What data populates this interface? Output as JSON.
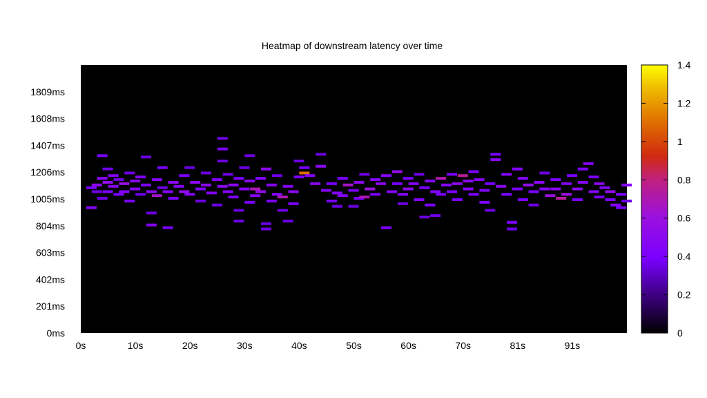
{
  "chart_data": {
    "type": "heatmap",
    "title": "Heatmap of downstream latency over time",
    "xlabel": "",
    "ylabel": "",
    "x_tick_labels": [
      "0s",
      "10s",
      "20s",
      "30s",
      "40s",
      "50s",
      "60s",
      "70s",
      "81s",
      "91s"
    ],
    "y_tick_labels": [
      "0ms",
      "201ms",
      "402ms",
      "603ms",
      "804ms",
      "1005ms",
      "1206ms",
      "1407ms",
      "1608ms",
      "1809ms"
    ],
    "colorbar_tick_labels": [
      "0",
      "0.2",
      "0.4",
      "0.6",
      "0.8",
      "1",
      "1.2",
      "1.4"
    ],
    "xlim": [
      0,
      100
    ],
    "ylim": [
      0,
      2010
    ],
    "zlim": [
      0,
      1.4
    ],
    "colormap": [
      "#000000",
      "#8000ff",
      "#c02090",
      "#e05010",
      "#ffe000",
      "#ffff00"
    ],
    "background_color": "#000000",
    "legend_position": "right",
    "cells": [
      [
        1,
        940,
        0.45
      ],
      [
        1,
        1090,
        0.4
      ],
      [
        2,
        1110,
        0.5
      ],
      [
        2,
        1060,
        0.35
      ],
      [
        3,
        1160,
        0.45
      ],
      [
        3,
        1010,
        0.35
      ],
      [
        3,
        1330,
        0.4
      ],
      [
        4,
        1130,
        0.55
      ],
      [
        4,
        1060,
        0.4
      ],
      [
        4,
        1230,
        0.35
      ],
      [
        5,
        1180,
        0.45
      ],
      [
        5,
        1100,
        0.5
      ],
      [
        6,
        1150,
        0.35
      ],
      [
        6,
        1040,
        0.4
      ],
      [
        7,
        1120,
        0.6
      ],
      [
        7,
        1060,
        0.45
      ],
      [
        8,
        1200,
        0.35
      ],
      [
        8,
        990,
        0.4
      ],
      [
        9,
        1140,
        0.5
      ],
      [
        9,
        1080,
        0.45
      ],
      [
        10,
        1040,
        0.35
      ],
      [
        10,
        1170,
        0.45
      ],
      [
        11,
        1110,
        0.4
      ],
      [
        11,
        1320,
        0.35
      ],
      [
        12,
        1060,
        0.5
      ],
      [
        12,
        900,
        0.35
      ],
      [
        12,
        810,
        0.45
      ],
      [
        13,
        1030,
        0.65
      ],
      [
        13,
        1150,
        0.45
      ],
      [
        14,
        1240,
        0.4
      ],
      [
        14,
        1090,
        0.35
      ],
      [
        15,
        1060,
        0.45
      ],
      [
        15,
        790,
        0.4
      ],
      [
        16,
        1130,
        0.5
      ],
      [
        16,
        1010,
        0.4
      ],
      [
        17,
        1100,
        0.45
      ],
      [
        18,
        1060,
        0.55
      ],
      [
        18,
        1180,
        0.4
      ],
      [
        19,
        1240,
        0.35
      ],
      [
        19,
        1040,
        0.45
      ],
      [
        20,
        1130,
        0.5
      ],
      [
        21,
        1080,
        0.4
      ],
      [
        21,
        990,
        0.35
      ],
      [
        22,
        1110,
        0.5
      ],
      [
        22,
        1200,
        0.35
      ],
      [
        23,
        1050,
        0.45
      ],
      [
        24,
        1150,
        0.4
      ],
      [
        24,
        960,
        0.35
      ],
      [
        25,
        1460,
        0.35
      ],
      [
        25,
        1380,
        0.4
      ],
      [
        25,
        1290,
        0.35
      ],
      [
        25,
        1100,
        0.5
      ],
      [
        26,
        1060,
        0.45
      ],
      [
        26,
        1190,
        0.35
      ],
      [
        27,
        1110,
        0.5
      ],
      [
        27,
        1020,
        0.4
      ],
      [
        28,
        1160,
        0.4
      ],
      [
        28,
        920,
        0.35
      ],
      [
        28,
        840,
        0.35
      ],
      [
        29,
        1080,
        0.45
      ],
      [
        29,
        1240,
        0.35
      ],
      [
        30,
        1140,
        0.5
      ],
      [
        30,
        1330,
        0.35
      ],
      [
        30,
        980,
        0.4
      ],
      [
        31,
        1080,
        0.7
      ],
      [
        31,
        1030,
        0.45
      ],
      [
        32,
        1160,
        0.45
      ],
      [
        32,
        1060,
        0.55
      ],
      [
        33,
        1230,
        0.5
      ],
      [
        33,
        820,
        0.35
      ],
      [
        33,
        780,
        0.35
      ],
      [
        34,
        1110,
        0.45
      ],
      [
        34,
        990,
        0.4
      ],
      [
        35,
        1040,
        0.45
      ],
      [
        35,
        1180,
        0.35
      ],
      [
        36,
        1020,
        0.7
      ],
      [
        36,
        920,
        0.35
      ],
      [
        37,
        1100,
        0.45
      ],
      [
        37,
        840,
        0.35
      ],
      [
        38,
        1060,
        0.5
      ],
      [
        38,
        970,
        0.4
      ],
      [
        39,
        1290,
        0.35
      ],
      [
        39,
        1170,
        0.4
      ],
      [
        40,
        1200,
        1.1
      ],
      [
        40,
        1240,
        0.4
      ],
      [
        41,
        1180,
        0.45
      ],
      [
        42,
        1120,
        0.5
      ],
      [
        43,
        1340,
        0.35
      ],
      [
        43,
        1250,
        0.5
      ],
      [
        44,
        1070,
        0.45
      ],
      [
        45,
        1120,
        0.4
      ],
      [
        45,
        990,
        0.4
      ],
      [
        46,
        1050,
        0.45
      ],
      [
        46,
        950,
        0.35
      ],
      [
        47,
        1160,
        0.4
      ],
      [
        47,
        1030,
        0.45
      ],
      [
        48,
        1110,
        0.65
      ],
      [
        49,
        1070,
        0.4
      ],
      [
        49,
        950,
        0.35
      ],
      [
        50,
        1130,
        0.5
      ],
      [
        50,
        1010,
        0.4
      ],
      [
        51,
        1020,
        0.7
      ],
      [
        51,
        1190,
        0.35
      ],
      [
        52,
        1080,
        0.6
      ],
      [
        53,
        1150,
        0.45
      ],
      [
        53,
        1040,
        0.4
      ],
      [
        54,
        1120,
        0.5
      ],
      [
        55,
        1180,
        0.45
      ],
      [
        55,
        790,
        0.4
      ],
      [
        56,
        1060,
        0.45
      ],
      [
        57,
        1210,
        0.55
      ],
      [
        57,
        1120,
        0.4
      ],
      [
        58,
        1040,
        0.45
      ],
      [
        58,
        970,
        0.35
      ],
      [
        59,
        1160,
        0.4
      ],
      [
        59,
        1080,
        0.5
      ],
      [
        60,
        1120,
        0.45
      ],
      [
        61,
        1000,
        0.45
      ],
      [
        61,
        1190,
        0.35
      ],
      [
        62,
        1090,
        0.4
      ],
      [
        62,
        870,
        0.35
      ],
      [
        63,
        1140,
        0.45
      ],
      [
        63,
        960,
        0.4
      ],
      [
        64,
        1060,
        0.45
      ],
      [
        64,
        880,
        0.35
      ],
      [
        65,
        1160,
        0.7
      ],
      [
        65,
        1040,
        0.4
      ],
      [
        66,
        1110,
        0.45
      ],
      [
        67,
        1190,
        0.4
      ],
      [
        67,
        1060,
        0.4
      ],
      [
        68,
        1120,
        0.5
      ],
      [
        68,
        1000,
        0.4
      ],
      [
        69,
        1180,
        0.75
      ],
      [
        70,
        1080,
        0.45
      ],
      [
        70,
        1140,
        0.5
      ],
      [
        71,
        1210,
        0.4
      ],
      [
        71,
        1040,
        0.4
      ],
      [
        72,
        1150,
        0.45
      ],
      [
        73,
        980,
        0.4
      ],
      [
        73,
        1070,
        0.45
      ],
      [
        74,
        1120,
        0.4
      ],
      [
        74,
        920,
        0.35
      ],
      [
        75,
        1340,
        0.4
      ],
      [
        75,
        1300,
        0.5
      ],
      [
        76,
        1100,
        0.5
      ],
      [
        77,
        1190,
        0.45
      ],
      [
        77,
        1040,
        0.4
      ],
      [
        78,
        830,
        0.4
      ],
      [
        78,
        780,
        0.35
      ],
      [
        79,
        1230,
        0.45
      ],
      [
        79,
        1080,
        0.4
      ],
      [
        80,
        1000,
        0.4
      ],
      [
        80,
        1160,
        0.45
      ],
      [
        81,
        1110,
        0.55
      ],
      [
        82,
        1060,
        0.4
      ],
      [
        82,
        960,
        0.35
      ],
      [
        83,
        1130,
        0.5
      ],
      [
        84,
        1080,
        0.45
      ],
      [
        84,
        1200,
        0.35
      ],
      [
        85,
        1030,
        0.6
      ],
      [
        86,
        1080,
        0.5
      ],
      [
        86,
        1150,
        0.4
      ],
      [
        87,
        1010,
        0.75
      ],
      [
        88,
        1040,
        0.6
      ],
      [
        88,
        1120,
        0.45
      ],
      [
        89,
        1180,
        0.4
      ],
      [
        90,
        1080,
        0.5
      ],
      [
        90,
        1000,
        0.4
      ],
      [
        91,
        1230,
        0.4
      ],
      [
        91,
        1130,
        0.45
      ],
      [
        92,
        1270,
        0.45
      ],
      [
        93,
        1060,
        0.45
      ],
      [
        93,
        1170,
        0.4
      ],
      [
        94,
        1020,
        0.4
      ],
      [
        94,
        1120,
        0.5
      ],
      [
        95,
        1090,
        0.45
      ],
      [
        96,
        1000,
        0.4
      ],
      [
        96,
        1060,
        0.55
      ],
      [
        97,
        960,
        0.45
      ],
      [
        98,
        940,
        0.4
      ],
      [
        98,
        1040,
        0.4
      ],
      [
        99,
        1110,
        0.45
      ],
      [
        99,
        990,
        0.35
      ]
    ]
  }
}
